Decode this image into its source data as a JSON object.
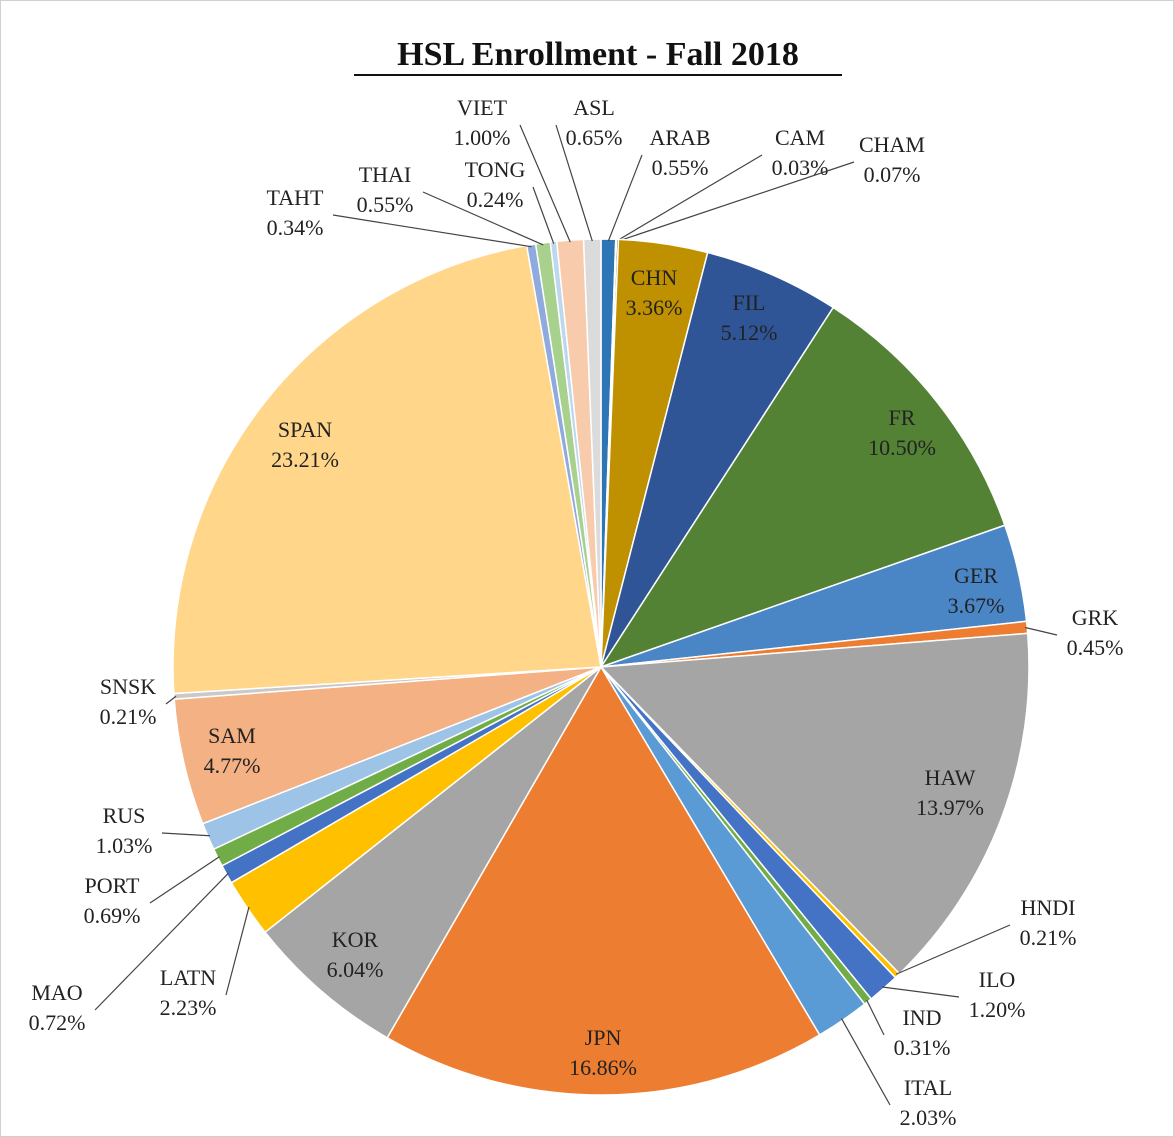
{
  "chart_data": {
    "type": "pie",
    "title": "HSL Enrollment - Fall 2018",
    "categories": [
      "ARAB",
      "CAM",
      "CHAM",
      "CHN",
      "FIL",
      "FR",
      "GER",
      "GRK",
      "HAW",
      "HNDI",
      "ILO",
      "IND",
      "ITAL",
      "JPN",
      "KOR",
      "LATN",
      "MAO",
      "PORT",
      "RUS",
      "SAM",
      "SNSK",
      "SPAN",
      "TAHT",
      "THAI",
      "TONG",
      "VIET",
      "ASL"
    ],
    "values": [
      0.55,
      0.03,
      0.07,
      3.36,
      5.12,
      10.5,
      3.67,
      0.45,
      13.97,
      0.21,
      1.2,
      0.31,
      2.03,
      16.86,
      6.04,
      2.23,
      0.72,
      0.69,
      1.03,
      4.77,
      0.21,
      23.21,
      0.34,
      0.55,
      0.24,
      1.0,
      0.65
    ],
    "value_labels": [
      "0.55%",
      "0.03%",
      "0.07%",
      "3.36%",
      "5.12%",
      "10.50%",
      "3.67%",
      "0.45%",
      "13.97%",
      "0.21%",
      "1.20%",
      "0.31%",
      "2.03%",
      "16.86%",
      "6.04%",
      "2.23%",
      "0.72%",
      "0.69%",
      "1.03%",
      "4.77%",
      "0.21%",
      "23.21%",
      "0.34%",
      "0.55%",
      "0.24%",
      "1.00%",
      "0.65%"
    ],
    "colors": [
      "#2e75b6",
      "#1f4e79",
      "#843c0c",
      "#bf9000",
      "#2f5597",
      "#548235",
      "#4a86c5",
      "#ed7d31",
      "#a5a5a5",
      "#ffc000",
      "#4472c4",
      "#70ad47",
      "#5b9bd5",
      "#ed7d31",
      "#a5a5a5",
      "#ffc000",
      "#4472c4",
      "#70ad47",
      "#9dc3e6",
      "#f4b183",
      "#c9c9c9",
      "#ffd68a",
      "#8faadc",
      "#a9d18e",
      "#bdd7ee",
      "#f8cbad",
      "#dbdbdb"
    ]
  }
}
